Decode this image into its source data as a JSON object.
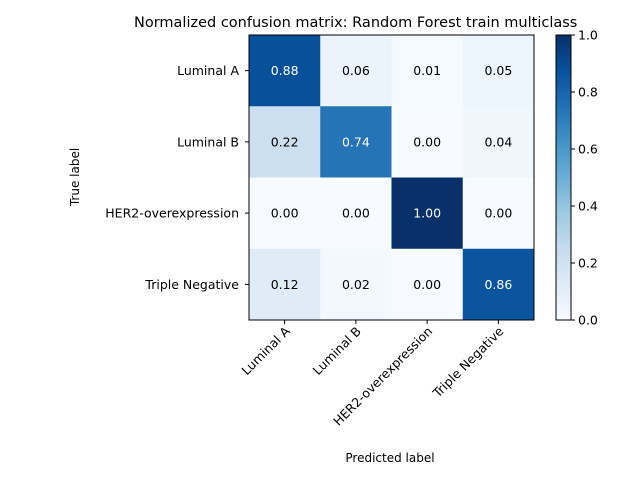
{
  "chart_data": {
    "type": "heatmap",
    "title": "Normalized confusion matrix: Random Forest train multiclass",
    "xlabel": "Predicted label",
    "ylabel": "True label",
    "row_labels": [
      "Luminal A",
      "Luminal B",
      "HER2-overexpression",
      "Triple Negative"
    ],
    "col_labels": [
      "Luminal A",
      "Luminal B",
      "HER2-overexpression",
      "Triple Negative"
    ],
    "values": [
      [
        0.88,
        0.06,
        0.01,
        0.05
      ],
      [
        0.22,
        0.74,
        0.0,
        0.04
      ],
      [
        0.0,
        0.0,
        1.0,
        0.0
      ],
      [
        0.12,
        0.02,
        0.0,
        0.86
      ]
    ],
    "value_format": "0.00",
    "colormap": "Blues",
    "colorbar": {
      "range": [
        0,
        1
      ],
      "ticks": [
        "0.0",
        "0.2",
        "0.4",
        "0.6",
        "0.8",
        "1.0"
      ]
    }
  }
}
